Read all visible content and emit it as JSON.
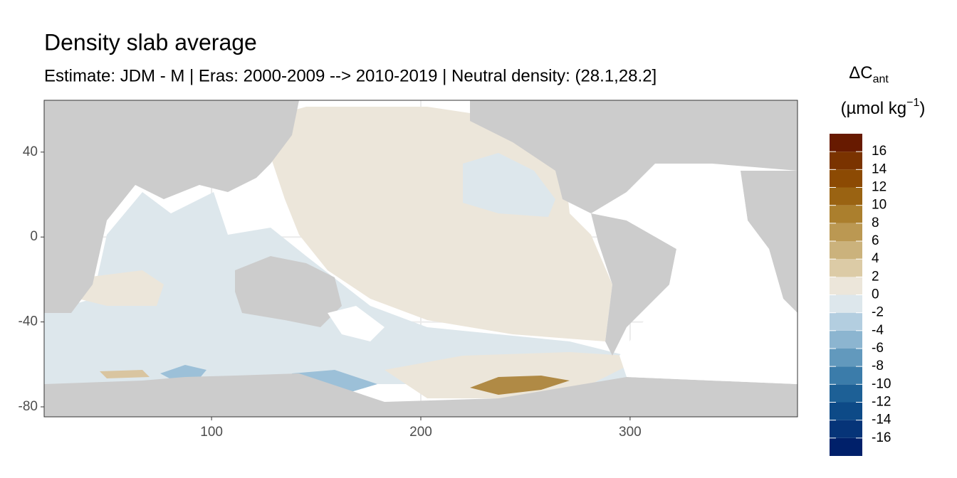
{
  "chart_data": {
    "type": "map",
    "title": "Density slab average",
    "subtitle": "Estimate: JDM - M | Eras: 2000-2009 --> 2010-2019 | Neutral density: (28.1,28.2]",
    "xlim": [
      20,
      380
    ],
    "xticks": [
      100,
      200,
      300
    ],
    "ylim": [
      -84.7,
      64.4
    ],
    "yticks": [
      -80,
      -40,
      0,
      40
    ],
    "grid": true,
    "legend": {
      "title": {
        "symbol": "ΔC",
        "sub": "ant",
        "unit": "(µmol kg",
        "sup": "−1",
        "close": ")"
      },
      "breaks": [
        -18,
        -16,
        -14,
        -12,
        -10,
        -8,
        -6,
        -4,
        -2,
        0,
        2,
        4,
        6,
        8,
        10,
        12,
        14,
        16,
        18
      ],
      "colors": [
        "#00206a",
        "#063478",
        "#0d4a87",
        "#1d6096",
        "#3b7caa",
        "#6299bd",
        "#8cb5d0",
        "#b3cee0",
        "#dde7ec",
        "#ece6da",
        "#dccba6",
        "#cbb27c",
        "#bb9852",
        "#ab7f2d",
        "#9a6312",
        "#8c4a03",
        "#7a3300",
        "#671a00"
      ],
      "ticks": [
        -16,
        -14,
        -12,
        -10,
        -8,
        -6,
        -4,
        -2,
        0,
        2,
        4,
        6,
        8,
        10,
        12,
        14,
        16
      ]
    }
  }
}
